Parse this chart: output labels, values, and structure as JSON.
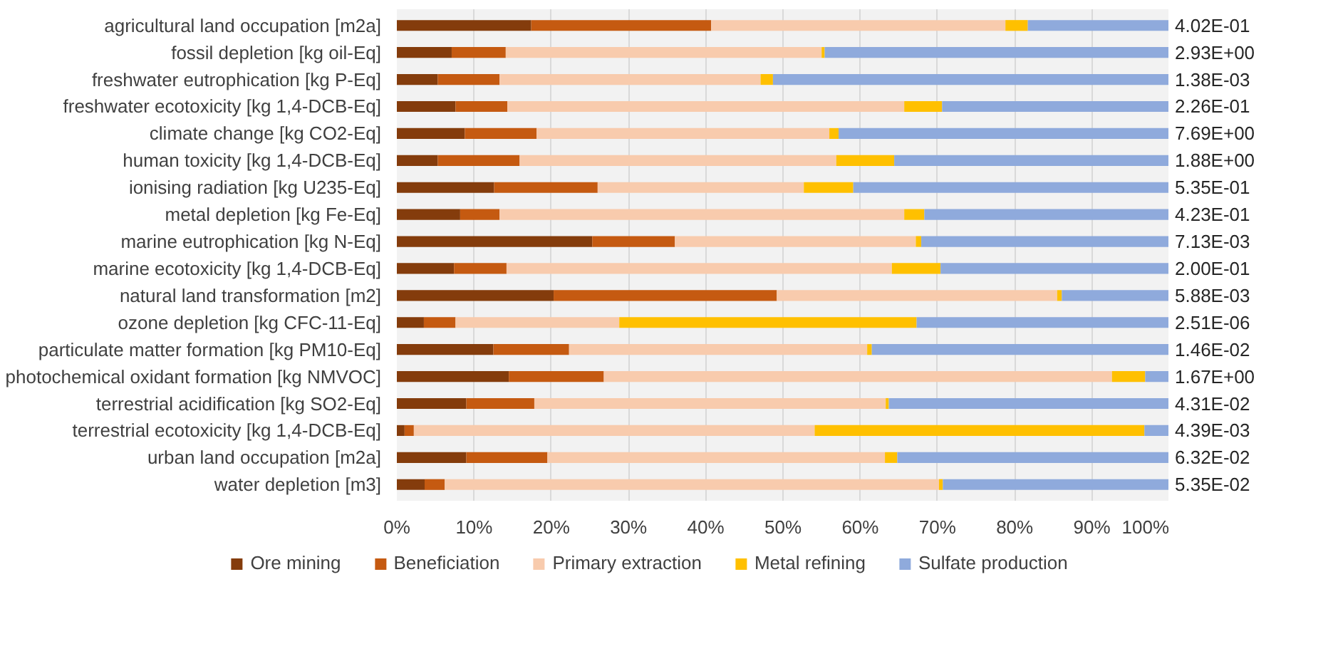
{
  "chart_data": {
    "type": "bar",
    "orientation": "horizontal",
    "stacked": true,
    "categories": [
      "agricultural land occupation [m2a]",
      "fossil depletion [kg oil-Eq]",
      "freshwater eutrophication [kg P-Eq]",
      "freshwater ecotoxicity [kg 1,4-DCB-Eq]",
      "climate change [kg CO2-Eq]",
      "human toxicity [kg 1,4-DCB-Eq]",
      "ionising radiation [kg U235-Eq]",
      "metal depletion [kg Fe-Eq]",
      "marine eutrophication [kg N-Eq]",
      "marine ecotoxicity [kg 1,4-DCB-Eq]",
      "natural land transformation [m2]",
      "ozone depletion [kg CFC-11-Eq]",
      "particulate matter formation [kg PM10-Eq]",
      "photochemical oxidant formation [kg NMVOC]",
      "terrestrial acidification [kg SO2-Eq]",
      "terrestrial ecotoxicity [kg 1,4-DCB-Eq]",
      "urban land occupation [m2a]",
      "water depletion [m3]"
    ],
    "series": [
      {
        "name": "Ore mining",
        "color": "#843c0c",
        "values": [
          17.4,
          7.1,
          5.3,
          7.6,
          8.8,
          5.3,
          12.6,
          8.2,
          25.3,
          7.4,
          20.3,
          3.5,
          12.5,
          14.5,
          9.0,
          1.0,
          9.0,
          3.6
        ]
      },
      {
        "name": "Beneficiation",
        "color": "#c55a11",
        "values": [
          23.3,
          7.0,
          8.0,
          6.7,
          9.3,
          10.6,
          13.4,
          5.1,
          10.7,
          6.8,
          28.9,
          4.1,
          9.8,
          12.3,
          8.8,
          1.2,
          10.5,
          2.6
        ]
      },
      {
        "name": "Primary extraction",
        "color": "#f8cbad",
        "values": [
          38.1,
          40.9,
          33.8,
          51.4,
          37.9,
          41.0,
          26.7,
          52.4,
          31.2,
          49.9,
          36.3,
          21.2,
          38.6,
          65.8,
          45.5,
          51.9,
          43.7,
          64.0
        ]
      },
      {
        "name": "Metal refining",
        "color": "#ffc000",
        "values": [
          2.9,
          0.4,
          1.6,
          4.9,
          1.2,
          7.5,
          6.4,
          2.6,
          0.7,
          6.3,
          0.6,
          38.5,
          0.6,
          4.3,
          0.4,
          42.7,
          1.6,
          0.5
        ]
      },
      {
        "name": "Sulfate production",
        "color": "#8faadc",
        "values": [
          18.3,
          44.6,
          51.3,
          29.4,
          42.8,
          35.6,
          40.9,
          31.7,
          32.1,
          29.6,
          13.9,
          32.7,
          38.5,
          3.1,
          36.3,
          3.2,
          35.2,
          29.3
        ]
      }
    ],
    "annotations": [
      "4.02E-01",
      "2.93E+00",
      "1.38E-03",
      "2.26E-01",
      "7.69E+00",
      "1.88E+00",
      "5.35E-01",
      "4.23E-01",
      "7.13E-03",
      "2.00E-01",
      "5.88E-03",
      "2.51E-06",
      "1.46E-02",
      "1.67E+00",
      "4.31E-02",
      "4.39E-03",
      "6.32E-02",
      "5.35E-02"
    ],
    "xlim": [
      0,
      100
    ],
    "xticks": [
      {
        "value": 0,
        "label": "0%"
      },
      {
        "value": 10,
        "label": "10%"
      },
      {
        "value": 20,
        "label": "20%"
      },
      {
        "value": 30,
        "label": "30%"
      },
      {
        "value": 40,
        "label": "40%"
      },
      {
        "value": 50,
        "label": "50%"
      },
      {
        "value": 60,
        "label": "60%"
      },
      {
        "value": 70,
        "label": "70%"
      },
      {
        "value": 80,
        "label": "80%"
      },
      {
        "value": 90,
        "label": "90%"
      },
      {
        "value": 100,
        "label": "100%"
      }
    ],
    "grid": "x",
    "legend": "bottom"
  }
}
